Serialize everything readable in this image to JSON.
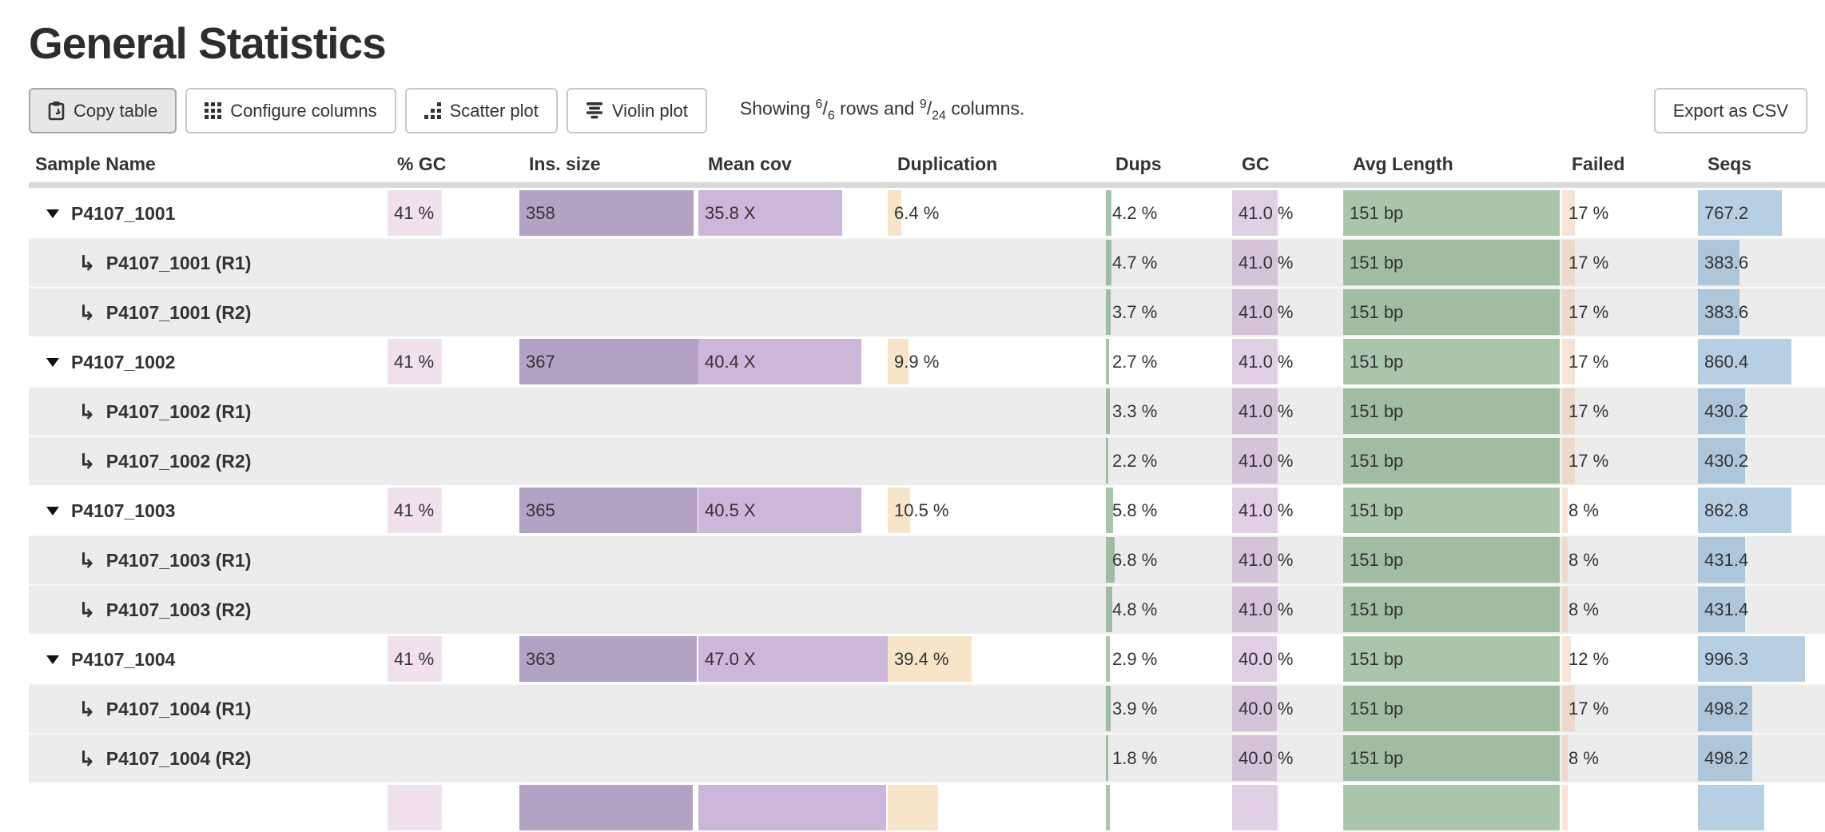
{
  "page": {
    "title": "General Statistics"
  },
  "toolbar": {
    "copy_label": "Copy table",
    "configure_label": "Configure columns",
    "scatter_label": "Scatter plot",
    "violin_label": "Violin plot",
    "export_label": "Export as CSV",
    "showing": {
      "prefix": "Showing",
      "rows_shown": "6",
      "rows_total": "6",
      "middle": "rows and",
      "cols_shown": "9",
      "cols_total": "24",
      "suffix": "columns."
    }
  },
  "table": {
    "columns": [
      {
        "key": "sample",
        "label": "Sample Name"
      },
      {
        "key": "gc",
        "label": "% GC"
      },
      {
        "key": "ins",
        "label": "Ins. size"
      },
      {
        "key": "cov",
        "label": "Mean cov"
      },
      {
        "key": "dup",
        "label": "Duplication"
      },
      {
        "key": "dups",
        "label": "Dups"
      },
      {
        "key": "gc2",
        "label": "GC"
      },
      {
        "key": "avg",
        "label": "Avg Length"
      },
      {
        "key": "failed",
        "label": "Failed"
      },
      {
        "key": "seqs",
        "label": "Seqs"
      }
    ],
    "rows": [
      {
        "name": "P4107_1001",
        "kind": "main",
        "cells": {
          "gc": {
            "t": "41 %",
            "f": 0.41
          },
          "ins": {
            "t": "358",
            "f": 0.975
          },
          "cov": {
            "t": "35.8 X",
            "f": 0.76
          },
          "dup": {
            "t": "6.4 %",
            "f": 0.063
          },
          "dups": {
            "t": "4.2 %",
            "f": 0.042
          },
          "gc2": {
            "t": "41.0 %",
            "f": 0.41
          },
          "avg": {
            "t": "151 bp",
            "f": 0.99
          },
          "failed": {
            "t": "17 %",
            "f": 0.095
          },
          "seqs": {
            "t": "767.2",
            "f": 0.66
          }
        }
      },
      {
        "name": "P4107_1001 (R1)",
        "kind": "sub",
        "cells": {
          "dups": {
            "t": "4.7 %",
            "f": 0.047
          },
          "gc2": {
            "t": "41.0 %",
            "f": 0.41
          },
          "avg": {
            "t": "151 bp",
            "f": 0.99
          },
          "failed": {
            "t": "17 %",
            "f": 0.095
          },
          "seqs": {
            "t": "383.6",
            "f": 0.33
          }
        }
      },
      {
        "name": "P4107_1001 (R2)",
        "kind": "sub",
        "cells": {
          "dups": {
            "t": "3.7 %",
            "f": 0.037
          },
          "gc2": {
            "t": "41.0 %",
            "f": 0.41
          },
          "avg": {
            "t": "151 bp",
            "f": 0.99
          },
          "failed": {
            "t": "17 %",
            "f": 0.095
          },
          "seqs": {
            "t": "383.6",
            "f": 0.33
          }
        }
      },
      {
        "name": "P4107_1002",
        "kind": "main",
        "cells": {
          "gc": {
            "t": "41 %",
            "f": 0.41
          },
          "ins": {
            "t": "367",
            "f": 1.0
          },
          "cov": {
            "t": "40.4 X",
            "f": 0.86
          },
          "dup": {
            "t": "9.9 %",
            "f": 0.097
          },
          "dups": {
            "t": "2.7 %",
            "f": 0.027
          },
          "gc2": {
            "t": "41.0 %",
            "f": 0.41
          },
          "avg": {
            "t": "151 bp",
            "f": 0.99
          },
          "failed": {
            "t": "17 %",
            "f": 0.095
          },
          "seqs": {
            "t": "860.4",
            "f": 0.735
          }
        }
      },
      {
        "name": "P4107_1002 (R1)",
        "kind": "sub",
        "cells": {
          "dups": {
            "t": "3.3 %",
            "f": 0.033
          },
          "gc2": {
            "t": "41.0 %",
            "f": 0.41
          },
          "avg": {
            "t": "151 bp",
            "f": 0.99
          },
          "failed": {
            "t": "17 %",
            "f": 0.095
          },
          "seqs": {
            "t": "430.2",
            "f": 0.37
          }
        }
      },
      {
        "name": "P4107_1002 (R2)",
        "kind": "sub",
        "cells": {
          "dups": {
            "t": "2.2 %",
            "f": 0.022
          },
          "gc2": {
            "t": "41.0 %",
            "f": 0.41
          },
          "avg": {
            "t": "151 bp",
            "f": 0.99
          },
          "failed": {
            "t": "17 %",
            "f": 0.095
          },
          "seqs": {
            "t": "430.2",
            "f": 0.37
          }
        }
      },
      {
        "name": "P4107_1003",
        "kind": "main",
        "cells": {
          "gc": {
            "t": "41 %",
            "f": 0.41
          },
          "ins": {
            "t": "365",
            "f": 0.995
          },
          "cov": {
            "t": "40.5 X",
            "f": 0.86
          },
          "dup": {
            "t": "10.5 %",
            "f": 0.103
          },
          "dups": {
            "t": "5.8 %",
            "f": 0.058
          },
          "gc2": {
            "t": "41.0 %",
            "f": 0.41
          },
          "avg": {
            "t": "151 bp",
            "f": 0.99
          },
          "failed": {
            "t": "8 %",
            "f": 0.044
          },
          "seqs": {
            "t": "862.8",
            "f": 0.737
          }
        }
      },
      {
        "name": "P4107_1003 (R1)",
        "kind": "sub",
        "cells": {
          "dups": {
            "t": "6.8 %",
            "f": 0.068
          },
          "gc2": {
            "t": "41.0 %",
            "f": 0.41
          },
          "avg": {
            "t": "151 bp",
            "f": 0.99
          },
          "failed": {
            "t": "8 %",
            "f": 0.044
          },
          "seqs": {
            "t": "431.4",
            "f": 0.37
          }
        }
      },
      {
        "name": "P4107_1003 (R2)",
        "kind": "sub",
        "cells": {
          "dups": {
            "t": "4.8 %",
            "f": 0.048
          },
          "gc2": {
            "t": "41.0 %",
            "f": 0.41
          },
          "avg": {
            "t": "151 bp",
            "f": 0.99
          },
          "failed": {
            "t": "8 %",
            "f": 0.044
          },
          "seqs": {
            "t": "431.4",
            "f": 0.37
          }
        }
      },
      {
        "name": "P4107_1004",
        "kind": "main",
        "cells": {
          "gc": {
            "t": "41 %",
            "f": 0.41
          },
          "ins": {
            "t": "363",
            "f": 0.989
          },
          "cov": {
            "t": "47.0 X",
            "f": 1.0
          },
          "dup": {
            "t": "39.4 %",
            "f": 0.386
          },
          "dups": {
            "t": "2.9 %",
            "f": 0.029
          },
          "gc2": {
            "t": "40.0 %",
            "f": 0.4
          },
          "avg": {
            "t": "151 bp",
            "f": 0.99
          },
          "failed": {
            "t": "12 %",
            "f": 0.067
          },
          "seqs": {
            "t": "996.3",
            "f": 0.845
          }
        }
      },
      {
        "name": "P4107_1004 (R1)",
        "kind": "sub",
        "cells": {
          "dups": {
            "t": "3.9 %",
            "f": 0.039
          },
          "gc2": {
            "t": "40.0 %",
            "f": 0.4
          },
          "avg": {
            "t": "151 bp",
            "f": 0.99
          },
          "failed": {
            "t": "17 %",
            "f": 0.095
          },
          "seqs": {
            "t": "498.2",
            "f": 0.425
          }
        }
      },
      {
        "name": "P4107_1004 (R2)",
        "kind": "sub",
        "cells": {
          "dups": {
            "t": "1.8 %",
            "f": 0.018
          },
          "gc2": {
            "t": "40.0 %",
            "f": 0.4
          },
          "avg": {
            "t": "151 bp",
            "f": 0.99
          },
          "failed": {
            "t": "8 %",
            "f": 0.044
          },
          "seqs": {
            "t": "498.2",
            "f": 0.425
          }
        }
      },
      {
        "name": "",
        "kind": "main",
        "cells": {
          "gc": {
            "t": "",
            "f": 0.41
          },
          "ins": {
            "t": "",
            "f": 0.97
          },
          "cov": {
            "t": "",
            "f": 0.99
          },
          "dup": {
            "t": "",
            "f": 0.23
          },
          "dups": {
            "t": "",
            "f": 0.03
          },
          "gc2": {
            "t": "",
            "f": 0.41
          },
          "avg": {
            "t": "",
            "f": 0.99
          },
          "failed": {
            "t": "",
            "f": 0.04
          },
          "seqs": {
            "t": "",
            "f": 0.52
          }
        }
      }
    ]
  }
}
